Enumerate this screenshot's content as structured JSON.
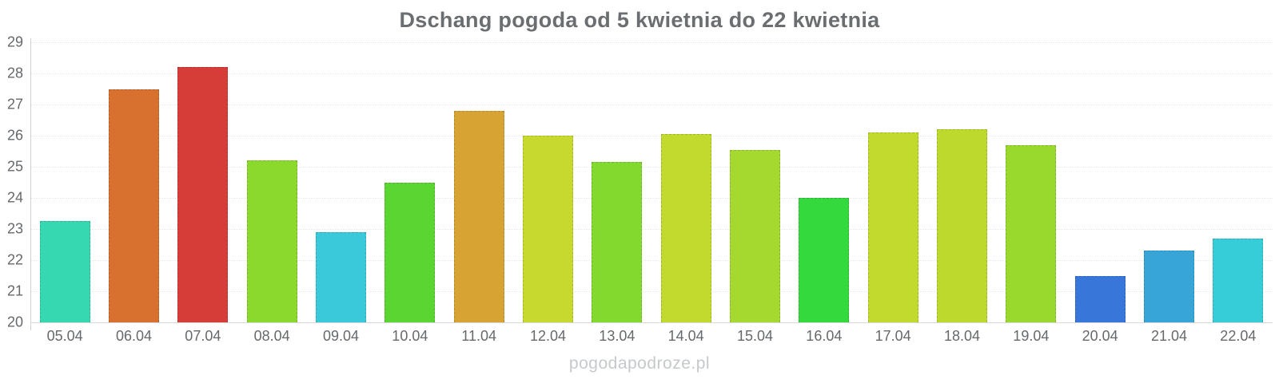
{
  "watermark": "pogodapodroze.pl",
  "chart_data": {
    "type": "bar",
    "title": "Dschang pogoda od 5 kwietnia do 22 kwietnia",
    "xlabel": "",
    "ylabel": "",
    "categories": [
      "05.04",
      "06.04",
      "07.04",
      "08.04",
      "09.04",
      "10.04",
      "11.04",
      "12.04",
      "13.04",
      "14.04",
      "15.04",
      "16.04",
      "17.04",
      "18.04",
      "19.04",
      "20.04",
      "21.04",
      "22.04"
    ],
    "values": [
      23.25,
      27.5,
      28.2,
      25.2,
      22.9,
      24.5,
      26.8,
      26.0,
      25.15,
      26.05,
      25.55,
      24.0,
      26.1,
      26.2,
      25.7,
      21.5,
      22.3,
      22.7
    ],
    "bar_colors": [
      "#35d8b0",
      "#d8702f",
      "#d63d38",
      "#8cd92e",
      "#3ac8db",
      "#5bd531",
      "#d7a433",
      "#c7d92e",
      "#83d92e",
      "#c2d92e",
      "#a6d930",
      "#34d93e",
      "#c2d92e",
      "#bed92e",
      "#99d92e",
      "#3876d9",
      "#38a5d9",
      "#36cdd8"
    ],
    "ylim": [
      20,
      29
    ],
    "yticks": [
      20,
      21,
      22,
      23,
      24,
      25,
      26,
      27,
      28,
      29
    ],
    "grid": true,
    "legend": false,
    "colors": {
      "title_text": "#6b6e70",
      "tick_text": "#66696c",
      "grid_line": "#e4e7e9",
      "axis_line": "#cdd1d3",
      "watermark_text": "#c5c9cc",
      "background": "#ffffff"
    }
  }
}
